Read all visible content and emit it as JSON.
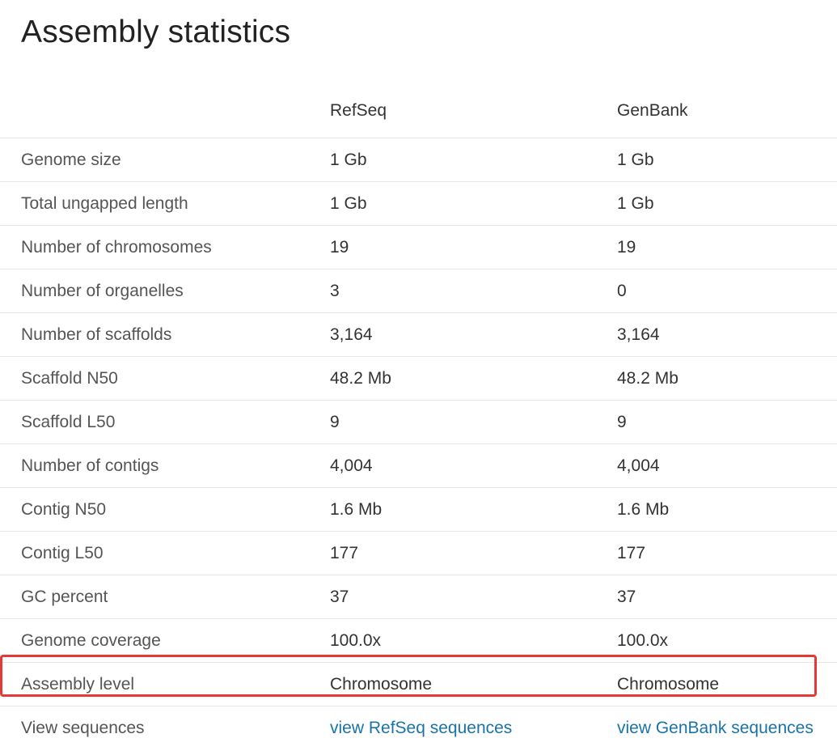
{
  "page": {
    "title": "Assembly statistics"
  },
  "table": {
    "columns": [
      "",
      "RefSeq",
      "GenBank"
    ],
    "rows": [
      {
        "label": "Genome size",
        "refseq": "1 Gb",
        "genbank": "1 Gb"
      },
      {
        "label": "Total ungapped length",
        "refseq": "1 Gb",
        "genbank": "1 Gb"
      },
      {
        "label": "Number of chromosomes",
        "refseq": "19",
        "genbank": "19"
      },
      {
        "label": "Number of organelles",
        "refseq": "3",
        "genbank": "0"
      },
      {
        "label": "Number of scaffolds",
        "refseq": "3,164",
        "genbank": "3,164"
      },
      {
        "label": "Scaffold N50",
        "refseq": "48.2 Mb",
        "genbank": "48.2 Mb"
      },
      {
        "label": "Scaffold L50",
        "refseq": "9",
        "genbank": "9"
      },
      {
        "label": "Number of contigs",
        "refseq": "4,004",
        "genbank": "4,004"
      },
      {
        "label": "Contig N50",
        "refseq": "1.6 Mb",
        "genbank": "1.6 Mb"
      },
      {
        "label": "Contig L50",
        "refseq": "177",
        "genbank": "177"
      },
      {
        "label": "GC percent",
        "refseq": "37",
        "genbank": "37"
      },
      {
        "label": "Genome coverage",
        "refseq": "100.0x",
        "genbank": "100.0x"
      },
      {
        "label": "Assembly level",
        "refseq": "Chromosome",
        "genbank": "Chromosome"
      },
      {
        "label": "View sequences",
        "refseq": "view RefSeq sequences",
        "genbank": "view GenBank sequences"
      }
    ]
  },
  "colors": {
    "link": "#1a73a8",
    "highlight": "#e53935"
  }
}
